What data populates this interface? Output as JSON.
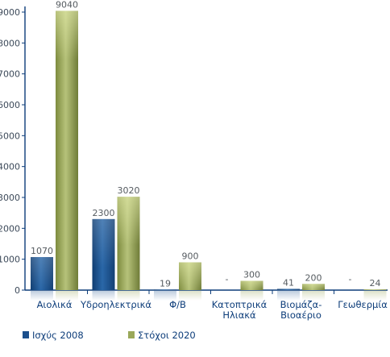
{
  "chart_data": {
    "type": "bar",
    "categories": [
      "Αιολικά",
      "Υδροηλεκτρικά",
      "Φ/Β",
      "Κατοπτρικά Ηλιακά",
      "Βιομάζα-Βιοαέριο",
      "Γεωθερμία"
    ],
    "category_lines": [
      [
        "Αιολικά"
      ],
      [
        "Υδροηλεκτρικά"
      ],
      [
        "Φ/Β"
      ],
      [
        "Κατοπτρικά",
        "Ηλιακά"
      ],
      [
        "Βιομάζα-",
        "Βιοαέριο"
      ],
      [
        "Γεωθερμία"
      ]
    ],
    "series": [
      {
        "name": "Ισχύς 2008",
        "values": [
          1070,
          2300,
          19,
          null,
          41,
          null
        ],
        "labels": [
          "1070",
          "2300",
          "19",
          "-",
          "41",
          "-"
        ],
        "color": "#1b4f8c"
      },
      {
        "name": "Στόχοι 2020",
        "values": [
          9040,
          3020,
          900,
          300,
          200,
          24
        ],
        "labels": [
          "9040",
          "3020",
          "900",
          "300",
          "200",
          "24"
        ],
        "color": "#9aa85a"
      }
    ],
    "ylim": [
      0,
      9000
    ],
    "yticks": [
      0,
      1000,
      2000,
      3000,
      4000,
      5000,
      6000,
      7000,
      8000,
      9000
    ],
    "grid": false,
    "legend_position": "bottom-left"
  }
}
